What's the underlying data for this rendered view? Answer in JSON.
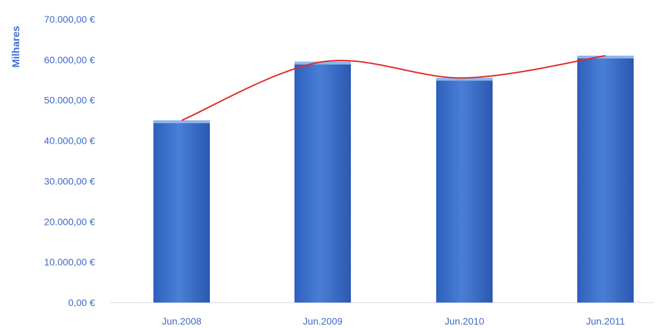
{
  "chart_data": {
    "type": "bar",
    "title": "",
    "xlabel": "",
    "ylabel": "Milhares",
    "categories": [
      "Jun.2008",
      "Jun.2009",
      "Jun.2010",
      "Jun.2011"
    ],
    "values": [
      45000,
      59500,
      55500,
      61000
    ],
    "ylim": [
      0,
      70000
    ],
    "ytick_labels": [
      "0,00 €",
      "10.000,00 €",
      "20.000,00 €",
      "30.000,00 €",
      "40.000,00 €",
      "50.000,00 €",
      "60.000,00 €",
      "70.000,00 €"
    ],
    "trendline": {
      "type": "smooth curve",
      "values": [
        45000,
        59500,
        55500,
        61000
      ],
      "color": "#e02a2a"
    },
    "grid": false,
    "legend": "none",
    "colors": {
      "bar": "#3a6bc4",
      "bar_highlight": "#8fb6ee",
      "tick_label": "#3c68c4",
      "axis_line": "#cfd6e6"
    }
  }
}
